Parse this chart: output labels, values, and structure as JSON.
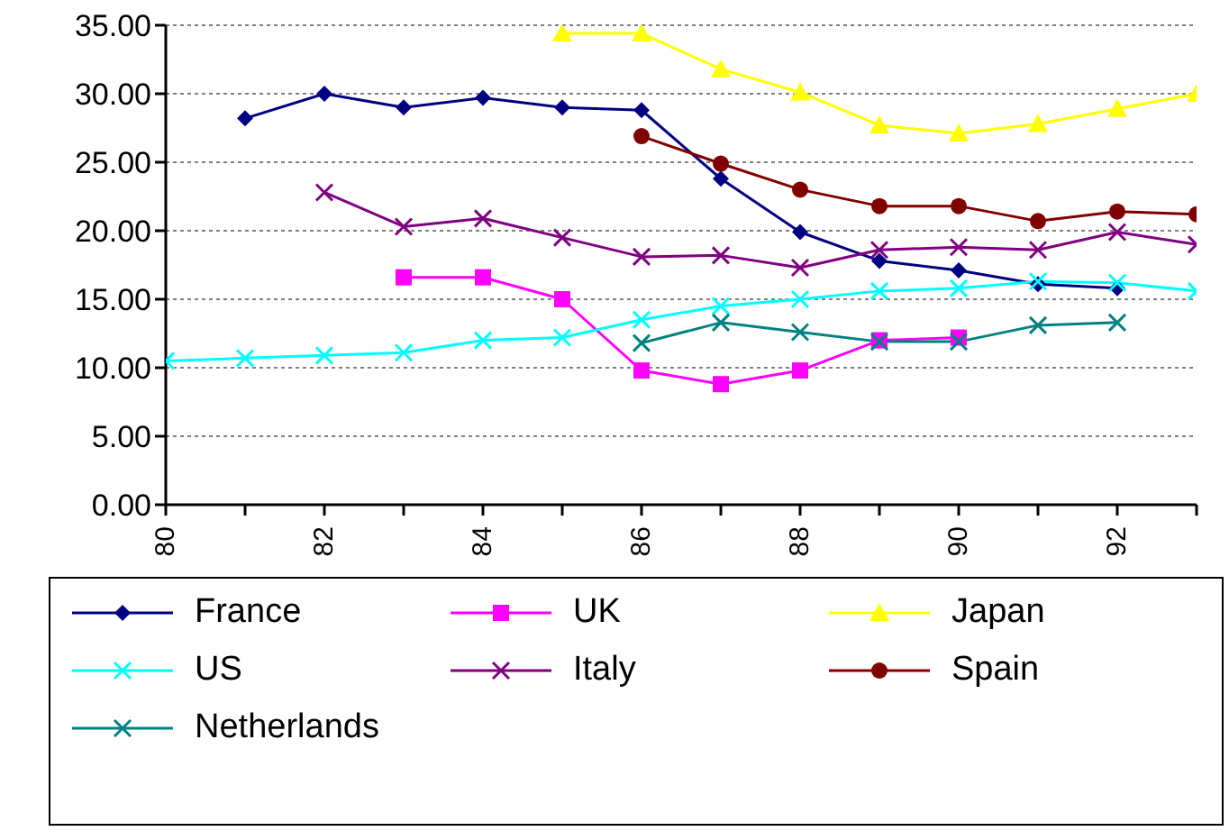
{
  "chart_data": {
    "type": "line",
    "x": [
      80,
      81,
      82,
      83,
      84,
      85,
      86,
      87,
      88,
      89,
      90,
      91,
      92,
      93
    ],
    "xlim": [
      80,
      93
    ],
    "xticks": [
      {
        "value": 80,
        "label": "80"
      },
      {
        "value": 81,
        "label": null
      },
      {
        "value": 82,
        "label": "82"
      },
      {
        "value": 83,
        "label": null
      },
      {
        "value": 84,
        "label": "84"
      },
      {
        "value": 85,
        "label": null
      },
      {
        "value": 86,
        "label": "86"
      },
      {
        "value": 87,
        "label": null
      },
      {
        "value": 88,
        "label": "88"
      },
      {
        "value": 89,
        "label": null
      },
      {
        "value": 90,
        "label": "90"
      },
      {
        "value": 91,
        "label": null
      },
      {
        "value": 92,
        "label": "92"
      },
      {
        "value": 93,
        "label": null
      }
    ],
    "ylim": [
      0,
      35
    ],
    "yticks": [
      {
        "value": 0,
        "label": "0.00"
      },
      {
        "value": 5,
        "label": "5.00"
      },
      {
        "value": 10,
        "label": "10.00"
      },
      {
        "value": 15,
        "label": "15.00"
      },
      {
        "value": 20,
        "label": "20.00"
      },
      {
        "value": 25,
        "label": "25.00"
      },
      {
        "value": 30,
        "label": "30.00"
      },
      {
        "value": 35,
        "label": "35.00"
      }
    ],
    "grid": "y",
    "legend": "bottom",
    "line_style": "solid",
    "series": [
      {
        "name": "France",
        "color": "#000080",
        "marker": "diamond",
        "values": [
          null,
          28.2,
          30.0,
          29.0,
          29.7,
          29.0,
          28.8,
          23.8,
          19.9,
          17.8,
          17.1,
          16.1,
          15.8,
          null
        ]
      },
      {
        "name": "UK",
        "color": "#ff00ff",
        "marker": "square",
        "values": [
          null,
          null,
          null,
          16.6,
          16.6,
          15.0,
          9.8,
          8.8,
          9.8,
          12.0,
          12.2,
          null,
          null,
          null
        ]
      },
      {
        "name": "Japan",
        "color": "#ffff00",
        "marker": "triangle",
        "values": [
          null,
          null,
          null,
          null,
          null,
          34.4,
          34.4,
          31.8,
          30.1,
          27.7,
          27.1,
          27.8,
          28.9,
          30.0
        ]
      },
      {
        "name": "US",
        "color": "#00ffff",
        "marker": "cross",
        "values": [
          10.5,
          10.7,
          10.9,
          11.1,
          12.0,
          12.2,
          13.5,
          14.5,
          15.0,
          15.6,
          15.8,
          16.3,
          16.2,
          15.6
        ]
      },
      {
        "name": "Italy",
        "color": "#800080",
        "marker": "cross",
        "values": [
          null,
          null,
          22.8,
          20.3,
          20.9,
          19.5,
          18.1,
          18.2,
          17.3,
          18.6,
          18.8,
          18.6,
          19.9,
          19.0
        ]
      },
      {
        "name": "Spain",
        "color": "#800000",
        "marker": "circle",
        "values": [
          null,
          null,
          null,
          null,
          null,
          null,
          26.9,
          24.9,
          23.0,
          21.8,
          21.8,
          20.7,
          21.4,
          21.2
        ]
      },
      {
        "name": "Netherlands",
        "color": "#008080",
        "marker": "cross",
        "values": [
          null,
          null,
          null,
          null,
          null,
          null,
          11.8,
          13.3,
          12.6,
          11.9,
          11.9,
          13.1,
          13.3,
          null
        ]
      }
    ]
  }
}
